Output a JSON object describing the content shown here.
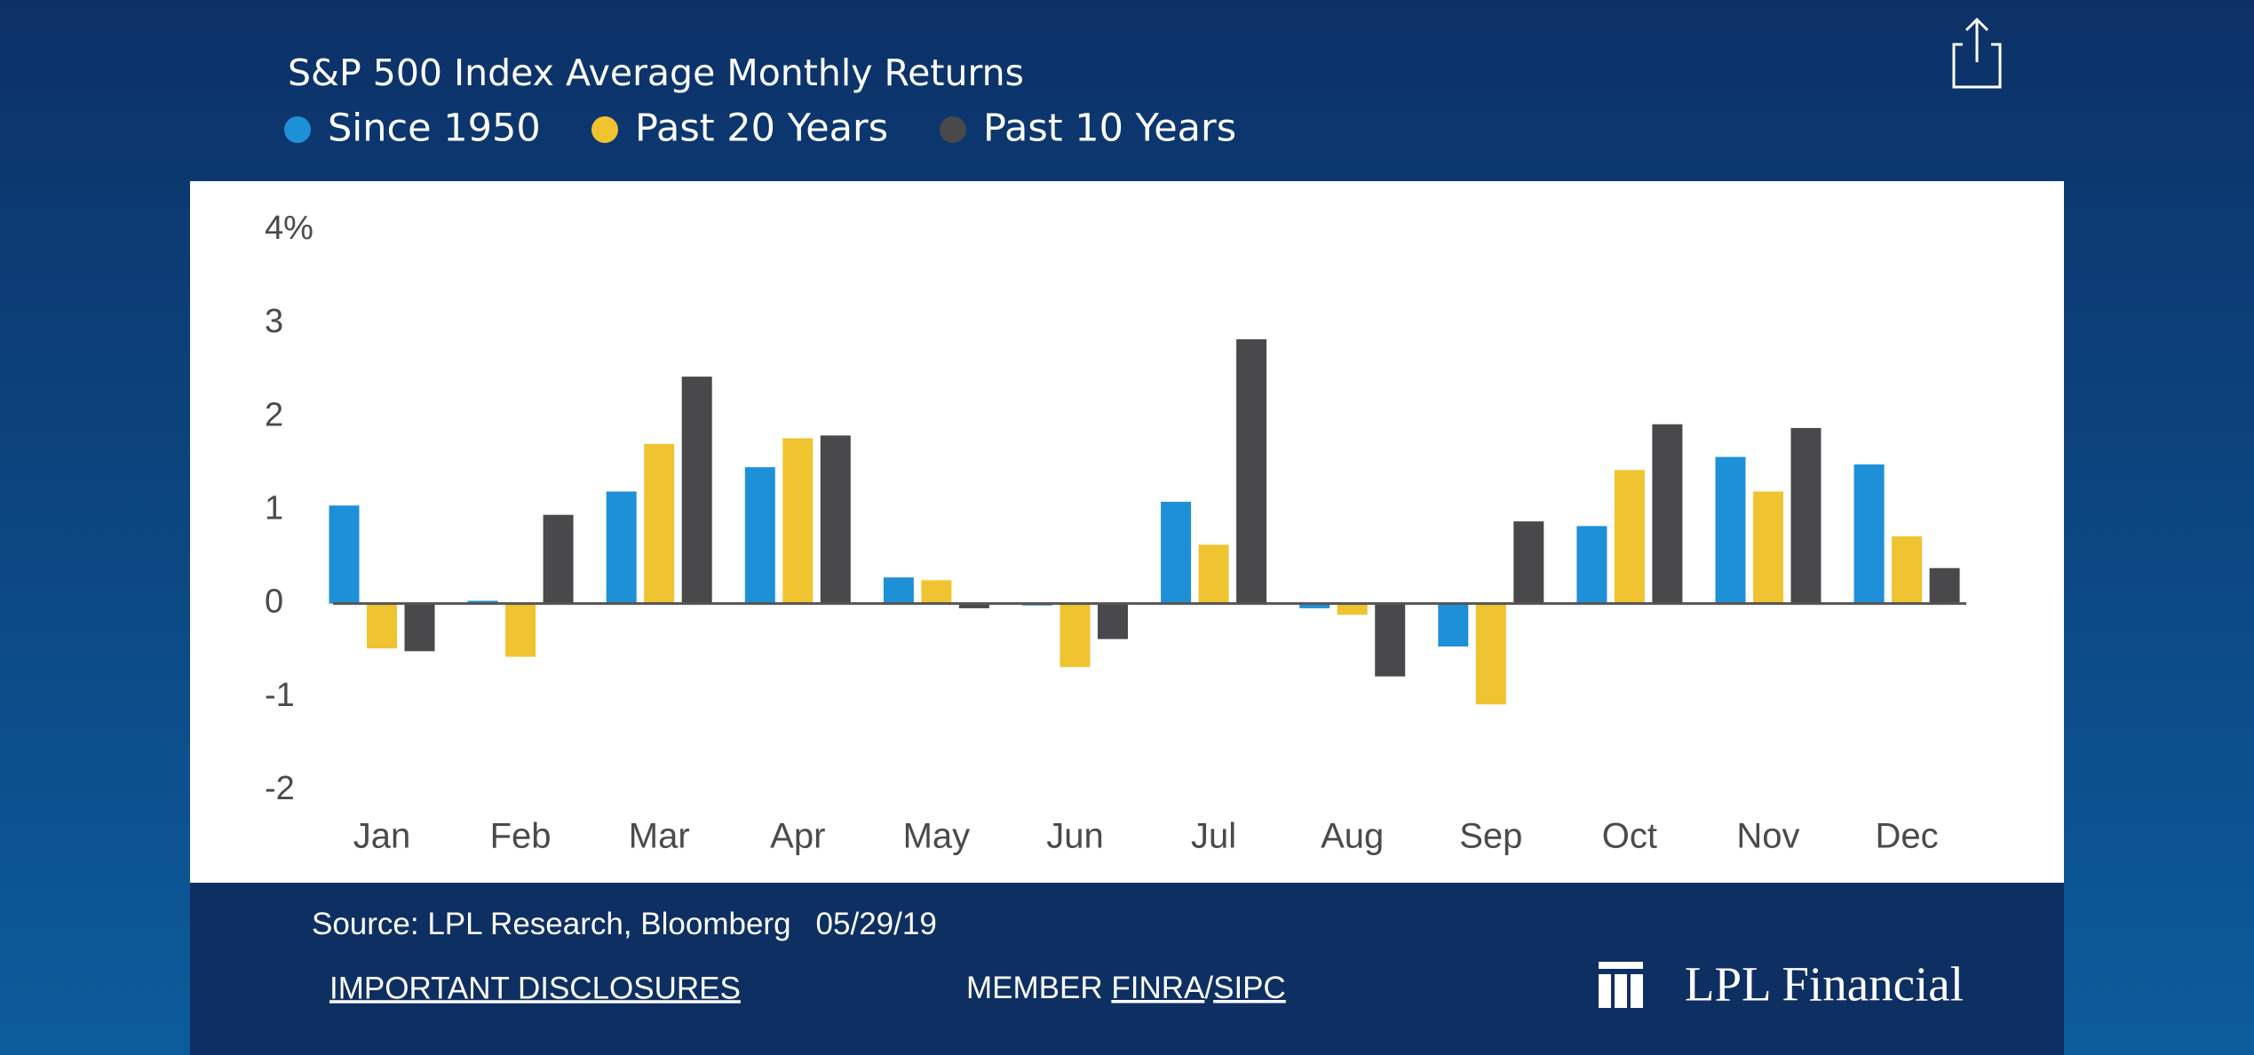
{
  "chart_data": {
    "type": "bar",
    "title": "S&P 500 Index Average Monthly Returns",
    "categories": [
      "Jan",
      "Feb",
      "Mar",
      "Apr",
      "May",
      "Jun",
      "Jul",
      "Aug",
      "Sep",
      "Oct",
      "Nov",
      "Dec"
    ],
    "series": [
      {
        "name": "Since 1950",
        "color": "#1e90d8",
        "values": [
          1.05,
          0.03,
          1.2,
          1.46,
          0.28,
          -0.02,
          1.09,
          -0.05,
          -0.46,
          0.83,
          1.57,
          1.49
        ]
      },
      {
        "name": "Past 20 Years",
        "color": "#f0c330",
        "values": [
          -0.48,
          -0.57,
          1.71,
          1.77,
          0.25,
          -0.68,
          0.63,
          -0.12,
          -1.08,
          1.43,
          1.2,
          0.72
        ]
      },
      {
        "name": "Past 10 Years",
        "color": "#49494b",
        "values": [
          -0.51,
          0.95,
          2.43,
          1.8,
          -0.05,
          -0.38,
          2.83,
          -0.78,
          0.88,
          1.92,
          1.88,
          0.38
        ]
      }
    ],
    "ylim": [
      -2,
      4
    ],
    "yticks": [
      -2,
      -1,
      0,
      1,
      2,
      3,
      {
        "value": 4,
        "label": "4%"
      }
    ],
    "grid": false
  },
  "footer": {
    "source": "Source: LPL Research, Bloomberg",
    "date": "05/29/19",
    "disclosures": "IMPORTANT DISCLOSURES",
    "member": "MEMBER",
    "finra": "FINRA",
    "separator": "/",
    "sipc": "SIPC",
    "logo": "LPL Financial"
  }
}
